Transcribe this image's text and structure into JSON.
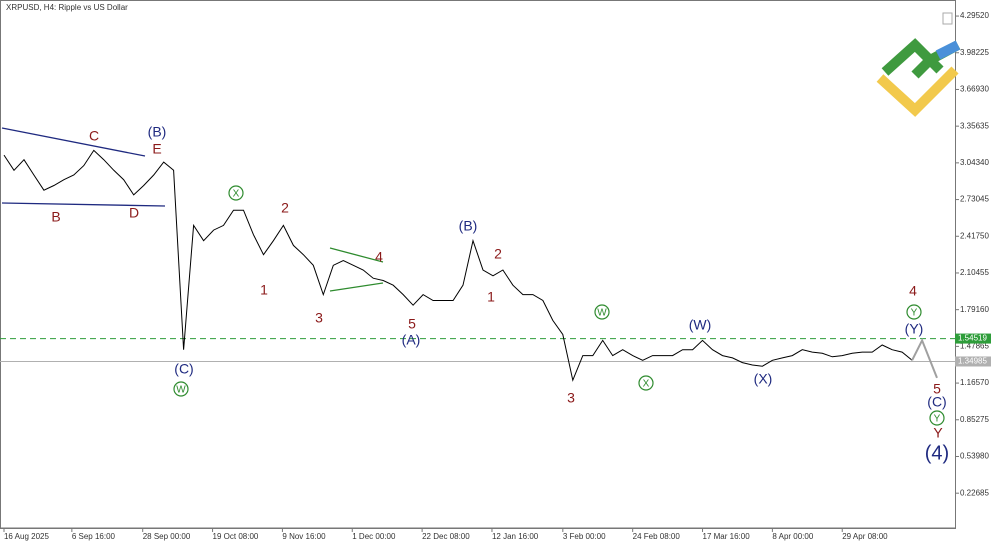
{
  "chart_data": {
    "type": "line",
    "title": "XRPUSD, H4:  Ripple vs US Dollar",
    "series": [
      {
        "name": "XRPUSD",
        "color": "#000000",
        "values": [
          3.11,
          2.98,
          3.07,
          2.94,
          2.81,
          2.85,
          2.9,
          2.94,
          3.02,
          3.15,
          3.07,
          2.98,
          2.9,
          2.77,
          2.85,
          2.94,
          3.05,
          2.98,
          1.45,
          2.51,
          2.38,
          2.47,
          2.51,
          2.64,
          2.64,
          2.43,
          2.26,
          2.38,
          2.51,
          2.34,
          2.26,
          2.17,
          1.92,
          2.17,
          2.21,
          2.17,
          2.13,
          2.06,
          2.04,
          2.0,
          1.92,
          1.83,
          1.92,
          1.87,
          1.87,
          1.87,
          2.0,
          2.38,
          2.13,
          2.08,
          2.13,
          2.0,
          1.92,
          1.92,
          1.87,
          1.7,
          1.58,
          1.19,
          1.4,
          1.4,
          1.53,
          1.4,
          1.45,
          1.4,
          1.36,
          1.4,
          1.4,
          1.4,
          1.45,
          1.45,
          1.53,
          1.45,
          1.4,
          1.38,
          1.34,
          1.32,
          1.31,
          1.36,
          1.38,
          1.4,
          1.45,
          1.43,
          1.42,
          1.39,
          1.4,
          1.42,
          1.43,
          1.43,
          1.49,
          1.45,
          1.43,
          1.36
        ]
      },
      {
        "name": "Projection",
        "color": "#a0a0a0",
        "x": [
          91,
          92,
          93.5
        ],
        "values": [
          1.36,
          1.53,
          1.21
        ]
      }
    ],
    "xlim": [
      -0.2,
      95.3
    ],
    "xticks": [
      {
        "value": 0,
        "label": "16 Aug 2025"
      },
      {
        "value": 6.8,
        "label": "6 Sep 16:00"
      },
      {
        "value": 13.9,
        "label": "28 Sep 00:00"
      },
      {
        "value": 20.9,
        "label": "19 Oct 08:00"
      },
      {
        "value": 27.9,
        "label": "9 Nov 16:00"
      },
      {
        "value": 34.9,
        "label": "1 Dec 00:00"
      },
      {
        "value": 41.9,
        "label": "22 Dec 08:00"
      },
      {
        "value": 48.9,
        "label": "12 Jan 16:00"
      },
      {
        "value": 56,
        "label": "3 Feb 00:00"
      },
      {
        "value": 63,
        "label": "24 Feb 08:00"
      },
      {
        "value": 70,
        "label": "17 Mar 16:00"
      },
      {
        "value": 77,
        "label": "8 Apr 00:00"
      },
      {
        "value": 84,
        "label": "29 Apr 08:00"
      }
    ],
    "ylim": [
      -0.07,
      4.415
    ],
    "yticks": [
      {
        "value": 4.2952,
        "label": "4.29520"
      },
      {
        "value": 3.98225,
        "label": "3.98225"
      },
      {
        "value": 3.6693,
        "label": "3.66930"
      },
      {
        "value": 3.35635,
        "label": "3.35635"
      },
      {
        "value": 3.0434,
        "label": "3.04340"
      },
      {
        "value": 2.73045,
        "label": "2.73045"
      },
      {
        "value": 2.4175,
        "label": "2.41750"
      },
      {
        "value": 2.10455,
        "label": "2.10455"
      },
      {
        "value": 1.7916,
        "label": "1.79160"
      },
      {
        "value": 1.47865,
        "label": "1.47865"
      },
      {
        "value": 1.1657,
        "label": "1.16570"
      },
      {
        "value": 0.85275,
        "label": "0.85275"
      },
      {
        "value": 0.5398,
        "label": "0.53980"
      },
      {
        "value": 0.22685,
        "label": "0.22685"
      }
    ],
    "levels": [
      {
        "value": 1.54519,
        "color": "#2e9d3a"
      },
      {
        "value": 1.34985,
        "color": "#b0b0b0"
      }
    ],
    "annotations": [
      "C",
      "(B)",
      "E",
      "B",
      "D",
      "(C)",
      "W",
      "X",
      "2",
      "1",
      "3",
      "4",
      "5",
      "(A)",
      "(B)",
      "2",
      "1",
      "3",
      "W",
      "X",
      "(W)",
      "(X)",
      "4",
      "Y",
      "(Y)",
      "5",
      "(C)",
      "Y",
      "Y",
      "(4)"
    ]
  }
}
